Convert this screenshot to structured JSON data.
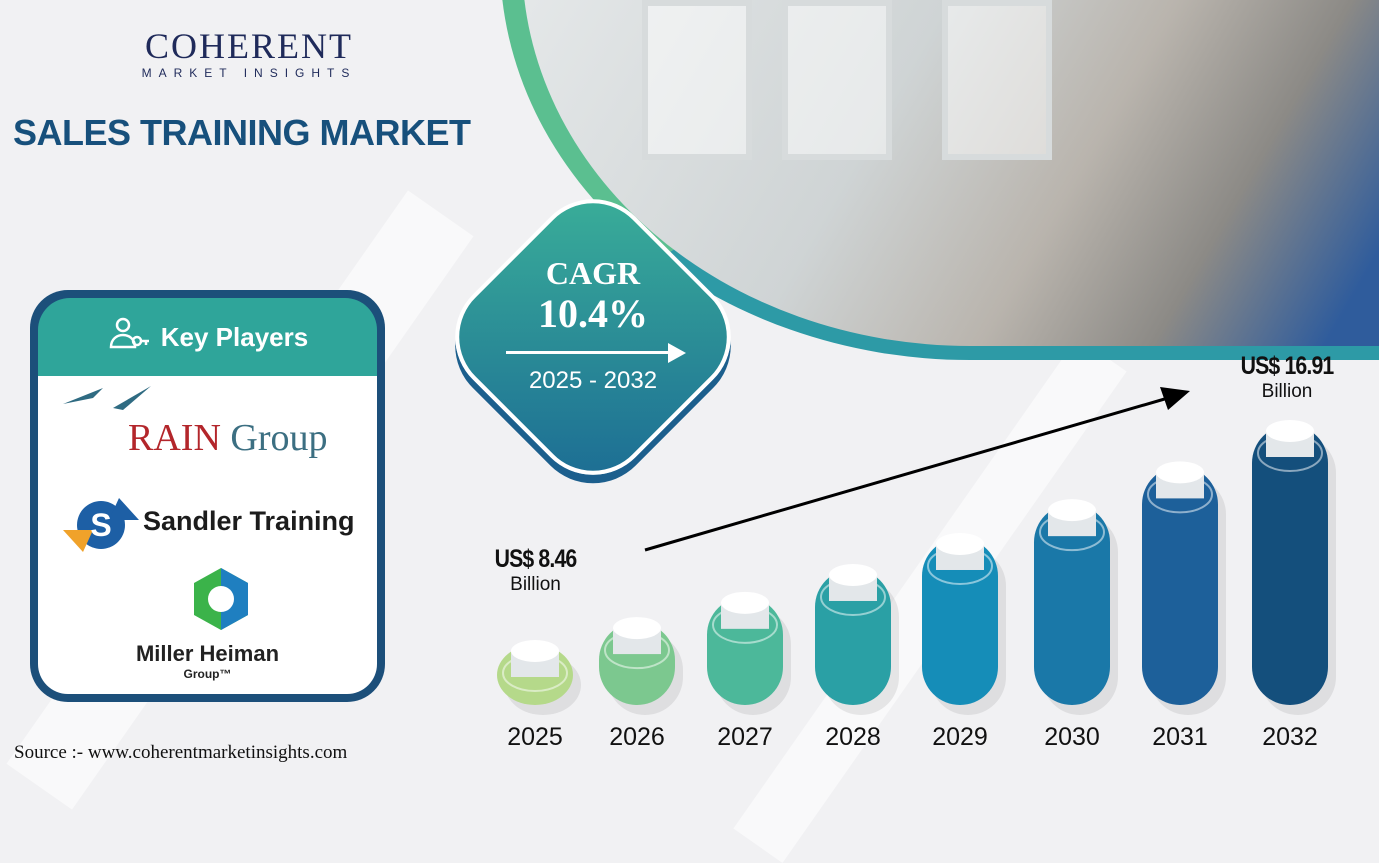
{
  "brand": {
    "name_main": "COHERENT",
    "name_sub": "MARKET INSIGHTS"
  },
  "title": "SALES TRAINING MARKET",
  "cagr": {
    "label": "CAGR",
    "value": "10.4%",
    "period": "2025 - 2032"
  },
  "key_players": {
    "heading": "Key Players",
    "icon": "people-key-icon",
    "players": [
      {
        "name_a": "RAIN",
        "name_b": "Group"
      },
      {
        "name": "Sandler Training"
      },
      {
        "name": "Miller Heiman",
        "sub": "Group™"
      }
    ]
  },
  "source": "Source :- www.coherentmarketinsights.com",
  "chart_data": {
    "type": "bar",
    "categories": [
      "2025",
      "2026",
      "2027",
      "2028",
      "2029",
      "2030",
      "2031",
      "2032"
    ],
    "values": [
      8.46,
      9.34,
      10.31,
      11.38,
      12.57,
      13.87,
      15.32,
      16.91
    ],
    "unit": "US$ Billion",
    "annotations": [
      {
        "category": "2025",
        "value": "US$ 8.46",
        "unit": "Billion"
      },
      {
        "category": "2032",
        "value": "US$ 16.91",
        "unit": "Billion"
      }
    ],
    "colors": [
      "#b5d98a",
      "#7cc88f",
      "#4cb89a",
      "#2aa0a5",
      "#158db8",
      "#1a78a8",
      "#1d609a",
      "#144f7c"
    ]
  }
}
